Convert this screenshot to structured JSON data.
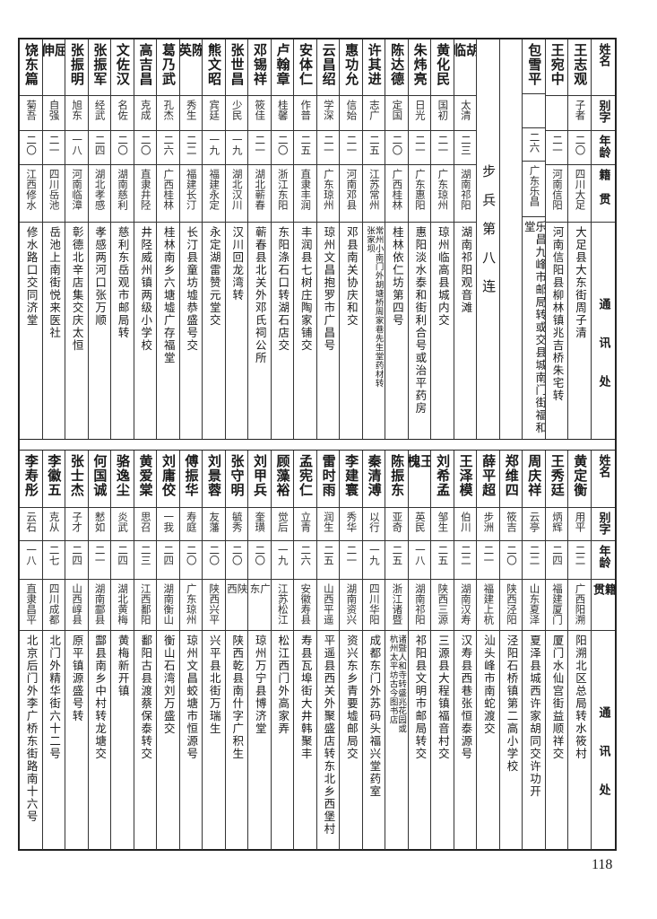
{
  "headers": [
    "姓名",
    "别字",
    "年龄",
    "籍贯",
    "通讯处"
  ],
  "top": {
    "before_section": [
      {
        "name": "王志观",
        "alias": "子者",
        "age": "二〇",
        "origin": "四川大足",
        "address": "大足县大东街周子清"
      },
      {
        "name": "王宛中",
        "alias": "",
        "age": "二一",
        "origin": "河南信阳",
        "address": "河南信阳县柳林镇兆吉桥朱宅转"
      },
      {
        "name": "包雪平",
        "alias": "",
        "age": "二六",
        "origin": "广东乐昌",
        "address": "乐昌九峰市邮局转或交县城南门街福和堂"
      }
    ],
    "section_title": "步兵第八连",
    "entries": [
      {
        "name": "胡临",
        "alias": "太清",
        "age": "二三",
        "origin": "湖南祁阳",
        "address": "湖南祁阳观音滩"
      },
      {
        "name": "黄化民",
        "alias": "国初",
        "age": "二一",
        "origin": "广东琼州",
        "address": "琼州临高县城内交"
      },
      {
        "name": "朱炜亮",
        "alias": "日光",
        "age": "二一",
        "origin": "广东惠阳",
        "address": "惠阳淡水泰和街利合号或治平药房"
      },
      {
        "name": "陈达德",
        "alias": "定国",
        "age": "二〇",
        "origin": "广西桂林",
        "address": "桂林依仁坊第四号"
      },
      {
        "name": "许其进",
        "alias": "志广",
        "age": "二五",
        "origin": "江苏常州",
        "address": "常州小南门外胡塘桥周家巷先生堂药材转",
        "address_line2": "张家坝"
      },
      {
        "name": "惠功允",
        "alias": "信始",
        "age": "二一",
        "origin": "河南邓县",
        "address": "邓县南关协庆和交"
      },
      {
        "name": "云昌绍",
        "alias": "学深",
        "age": "二一",
        "origin": "广东琼州",
        "address": "琼州文昌抱罗市广昌号"
      },
      {
        "name": "安体仁",
        "alias": "作普",
        "age": "二五",
        "origin": "直隶丰润",
        "address": "丰润县七树庄陶家铺交"
      },
      {
        "name": "卢翰章",
        "alias": "桂馨",
        "age": "二〇",
        "origin": "浙江东阳",
        "address": "东阳涤石口转湖石店交"
      },
      {
        "name": "邓锡祥",
        "alias": "筱佳",
        "age": "二一",
        "origin": "湖北蕲春",
        "address": "蕲春县北关外邓氏祠公所"
      },
      {
        "name": "张世昌",
        "alias": "少民",
        "age": "一九",
        "origin": "湖北汉川",
        "address": "汉川回龙湾转"
      },
      {
        "name": "熊文昭",
        "alias": "宾廷",
        "age": "一九",
        "origin": "福建永定",
        "address": "永定湖雷赞元堂交"
      },
      {
        "name": "陈英",
        "alias": "秀生",
        "age": "二二",
        "origin": "福建长汀",
        "address": "长汀县童坊墟恭盛号交"
      },
      {
        "name": "葛乃武",
        "alias": "孔杰",
        "age": "二六",
        "origin": "广西桂林",
        "address": "桂林南乡六塘墟广存福堂"
      },
      {
        "name": "高吉昌",
        "alias": "克成",
        "age": "二〇",
        "origin": "直隶井陉",
        "address": "井陉威州镇两级小学校"
      },
      {
        "name": "文佐汉",
        "alias": "名佐",
        "age": "二〇",
        "origin": "湖南慈利",
        "address": "慈利东岳观市邮局转"
      },
      {
        "name": "张振军",
        "alias": "经武",
        "age": "二四",
        "origin": "湖北孝感",
        "address": "孝感两河口张万顺"
      },
      {
        "name": "张振明",
        "alias": "旭东",
        "age": "一八",
        "origin": "河南临漳",
        "address": "彰德北辛店集交庆太恒"
      },
      {
        "name": "屈伸",
        "alias": "自强",
        "age": "二一",
        "origin": "四川岳池",
        "address": "岳池上南街悦来医社"
      },
      {
        "name": "饶东篇",
        "alias": "菊吾",
        "age": "二〇",
        "origin": "江西修水",
        "address": "修水路口交同济堂"
      }
    ]
  },
  "bottom": {
    "entries": [
      {
        "name": "黄定衡",
        "alias": "用平",
        "age": "二二",
        "origin": "广西阳溯",
        "address": "阳溯北区总局转水筱村"
      },
      {
        "name": "王秀廷",
        "alias": "炳辉",
        "age": "二四",
        "origin": "福建厦门",
        "address": "厦门水仙宫街益顺祥交"
      },
      {
        "name": "周庆祥",
        "alias": "云亭",
        "age": "二二",
        "origin": "山东夏泽",
        "address": "夏泽县城西许家胡同交许功开"
      },
      {
        "name": "郑维四",
        "alias": "筱吉",
        "age": "二〇",
        "origin": "陕西泾阳",
        "address": "泾阳石桥镇第二高小学校"
      },
      {
        "name": "薛平超",
        "alias": "步洲",
        "age": "二一",
        "origin": "福建上杭",
        "address": "汕头峰市南蛇渡交"
      },
      {
        "name": "王泽模",
        "alias": "伯川",
        "age": "二二",
        "origin": "湖南汉寿",
        "address": "汉寿县西巷张恒泰源号"
      },
      {
        "name": "刘希孟",
        "alias": "邹生",
        "age": "二五",
        "origin": "陕西三源",
        "address": "三源县大程镇福音村交"
      },
      {
        "name": "王槐",
        "alias": "英民",
        "age": "一八",
        "origin": "湖南祁阳",
        "address": "祁阳县文明市邮局转交"
      },
      {
        "name": "陈振东",
        "alias": "亚奇",
        "age": "二五",
        "origin": "浙江诸暨",
        "address": "诸暨人和寺转盛兆花园或",
        "address_line2": "杭州太平坊古今图书店"
      },
      {
        "name": "秦清溥",
        "alias": "以行",
        "age": "一九",
        "origin": "四川华阳",
        "address": "成都东门外苏码头福兴堂药室"
      },
      {
        "name": "李建寰",
        "alias": "秀华",
        "age": "二一",
        "origin": "湖南资兴",
        "address": "资兴东乡青要墟邮局交"
      },
      {
        "name": "雷时雨",
        "alias": "润生",
        "age": "二五",
        "origin": "山西平遥",
        "address": "平遥县西关外聚盛店转东北乡西堡村"
      },
      {
        "name": "孟宪仁",
        "alias": "立青",
        "age": "二六",
        "origin": "安徽寿县",
        "address": "寿县瓦埠街大井韩聚丰"
      },
      {
        "name": "顾藻裕",
        "alias": "觉后",
        "age": "一九",
        "origin": "江苏松江",
        "address": "松江西门外高家弄"
      },
      {
        "name": "刘甲兵",
        "alias": "奎璜",
        "age": "二〇",
        "origin": "广东",
        "address": "琼州万宁县博济堂"
      },
      {
        "name": "张守明",
        "alias": "毓秀",
        "age": "二〇",
        "origin": "陕西",
        "address": "陕西乾县南什字广积生"
      },
      {
        "name": "刘景蓉",
        "alias": "友藩",
        "age": "二〇",
        "origin": "陕西兴平",
        "address": "兴平县北街万瑞生"
      },
      {
        "name": "傅振华",
        "alias": "寿庭",
        "age": "二〇",
        "origin": "广东琼州",
        "address": "琼州文昌蛟塘市恒源号"
      },
      {
        "name": "刘庸佼",
        "alias": "一我",
        "age": "二四",
        "origin": "湖南衡山",
        "address": "衡山石湾刘万盛交"
      },
      {
        "name": "黄爱棠",
        "alias": "思召",
        "age": "二三",
        "origin": "江西鄱阳",
        "address": "鄱阳古县渡蔡保泰转交"
      },
      {
        "name": "骆逸尘",
        "alias": "炎武",
        "age": "二四",
        "origin": "湖北黄梅",
        "address": "黄梅新开镇"
      },
      {
        "name": "何国诚",
        "alias": "慭如",
        "age": "二一",
        "origin": "湖南酃县",
        "address": "酃县南乡中村转龙塘交"
      },
      {
        "name": "张士杰",
        "alias": "子才",
        "age": "二四",
        "origin": "山西崞县",
        "address": "原平镇源盛号转"
      },
      {
        "name": "李徽五",
        "alias": "克从",
        "age": "二七",
        "origin": "四川成都",
        "address": "北门外精华街六十二号"
      },
      {
        "name": "李寿彤",
        "alias": "云石",
        "age": "一八",
        "origin": "直隶昌平",
        "address": "北京后门外李广桥东街路南十六号"
      }
    ]
  },
  "page_number": "118"
}
